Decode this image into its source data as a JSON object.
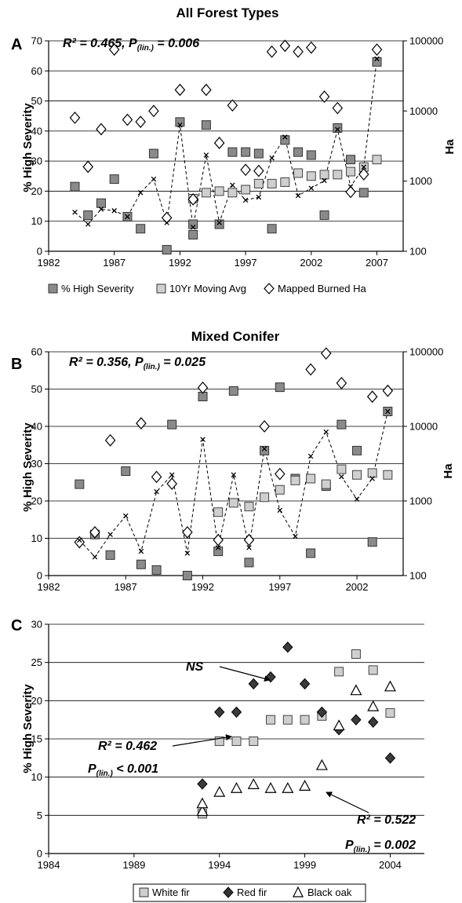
{
  "chart_data": [
    {
      "panel": "A",
      "title": "All Forest Types",
      "type": "scatter",
      "ylabel": "% High Severity",
      "y2label": "Ha",
      "xlim": [
        1982,
        2009
      ],
      "ylim": [
        0,
        70
      ],
      "y2lim": [
        100,
        100000
      ],
      "y2scale": "log",
      "xticks": [
        "1982",
        "1987",
        "1992",
        "1997",
        "2002",
        "2007"
      ],
      "yticks": [
        "0",
        "10",
        "20",
        "30",
        "40",
        "50",
        "60",
        "70"
      ],
      "y2ticks": [
        "100",
        "1000",
        "10000",
        "100000"
      ],
      "grid": "horizontal",
      "annotation": {
        "r2": "R² = 0.465, P",
        "sub": "(lin.)",
        "tail": " = 0.006"
      },
      "legend": [
        "% High Severity",
        "10Yr Moving Avg",
        "Mapped Burned Ha"
      ],
      "legend_position": "bottom",
      "series": [
        {
          "name": "% High Severity",
          "marker": "square-dark",
          "axis": "left",
          "x": [
            1984,
            1985,
            1986,
            1987,
            1988,
            1989,
            1990,
            1991,
            1992,
            1993,
            1993,
            1994,
            1995,
            1996,
            1997,
            1998,
            1999,
            2000,
            2001,
            2002,
            2003,
            2004,
            2005,
            2006,
            2007
          ],
          "y": [
            21.5,
            12,
            16,
            24,
            11.5,
            7.5,
            32.5,
            0.5,
            43,
            9,
            5.5,
            42,
            9,
            33,
            33,
            32.5,
            7.5,
            37,
            33,
            32,
            12,
            41,
            30.5,
            19.5,
            63
          ]
        },
        {
          "name": "10Yr Moving Avg",
          "marker": "square-light",
          "axis": "left",
          "x": [
            1993,
            1994,
            1995,
            1996,
            1997,
            1998,
            1999,
            2000,
            2001,
            2002,
            2003,
            2004,
            2005,
            2006,
            2007
          ],
          "y": [
            17.5,
            19.5,
            20,
            19.5,
            20.5,
            22.5,
            22.5,
            23,
            26,
            25,
            25.5,
            25.5,
            26.5,
            28,
            30.5
          ]
        },
        {
          "name": "Mapped Burned Ha",
          "marker": "diamond-open",
          "axis": "right",
          "x": [
            1984,
            1985,
            1986,
            1987,
            1988,
            1989,
            1990,
            1991,
            1992,
            1993,
            1994,
            1995,
            1996,
            1997,
            1998,
            1999,
            2000,
            2001,
            2002,
            2003,
            2004,
            2005,
            2006,
            2007
          ],
          "y": [
            8000,
            1600,
            5500,
            75000,
            7500,
            7000,
            10000,
            300,
            20000,
            550,
            20000,
            3500,
            12000,
            1450,
            1400,
            70000,
            85000,
            70000,
            80000,
            16000,
            11000,
            700,
            1250,
            75000
          ]
        },
        {
          "name": "",
          "marker": "x-dashed",
          "axis": "left",
          "x": [
            1984,
            1985,
            1986,
            1987,
            1988,
            1989,
            1990,
            1991,
            1992,
            1993,
            1994,
            1995,
            1996,
            1997,
            1998,
            1999,
            2000,
            2001,
            2002,
            2003,
            2004,
            2005,
            2006,
            2007
          ],
          "y": [
            13,
            9,
            14,
            13.5,
            11.5,
            19.5,
            24,
            9.5,
            42,
            8,
            32,
            9.5,
            22,
            17,
            18,
            31,
            38,
            18.5,
            21,
            23.5,
            40.5,
            21.5,
            28,
            64
          ]
        }
      ]
    },
    {
      "panel": "B",
      "title": "Mixed Conifer",
      "type": "scatter",
      "ylabel": "% High Severity",
      "y2label": "Ha",
      "xlim": [
        1982,
        2005
      ],
      "ylim": [
        0,
        60
      ],
      "y2lim": [
        100,
        100000
      ],
      "y2scale": "log",
      "xticks": [
        "1982",
        "1987",
        "1992",
        "1997",
        "2002"
      ],
      "yticks": [
        "0",
        "10",
        "20",
        "30",
        "40",
        "50",
        "60"
      ],
      "y2ticks": [
        "100",
        "1000",
        "10000",
        "100000"
      ],
      "grid": "horizontal",
      "annotation": {
        "r2": "R² = 0.356, P",
        "sub": "(lin.)",
        "tail": " = 0.025"
      },
      "series": [
        {
          "name": "% High Severity",
          "marker": "square-dark",
          "axis": "left",
          "x": [
            1984,
            1985,
            1986,
            1987,
            1988,
            1989,
            1990,
            1991,
            1992,
            1993,
            1994,
            1995,
            1996,
            1997,
            1998,
            1999,
            2000,
            2001,
            2002,
            2003,
            2004
          ],
          "y": [
            24.5,
            11,
            5.5,
            28,
            3,
            1.5,
            40.5,
            0,
            48,
            6.5,
            49.5,
            3.5,
            33.5,
            50.5,
            26,
            6,
            24,
            40.5,
            33.5,
            9,
            44
          ]
        },
        {
          "name": "10Yr Moving Avg",
          "marker": "square-light",
          "axis": "left",
          "x": [
            1993,
            1994,
            1995,
            1996,
            1997,
            1998,
            1999,
            2000,
            2001,
            2002,
            2003,
            2004
          ],
          "y": [
            17,
            19.5,
            18.5,
            21,
            23,
            25.5,
            26,
            24.5,
            28.5,
            27,
            27.5,
            27
          ]
        },
        {
          "name": "Mapped Burned Ha",
          "marker": "diamond-open",
          "axis": "right",
          "x": [
            1984,
            1985,
            1986,
            1988,
            1989,
            1990,
            1991,
            1992,
            1993,
            1995,
            1996,
            1997,
            1999,
            2000,
            2001,
            2003,
            2004
          ],
          "y": [
            280,
            380,
            6500,
            11000,
            2100,
            1700,
            380,
            33000,
            300,
            300,
            10000,
            2300,
            58000,
            95000,
            38000,
            25000,
            30000
          ]
        },
        {
          "name": "",
          "marker": "x-dashed",
          "axis": "left",
          "x": [
            1984,
            1985,
            1986,
            1987,
            1988,
            1989,
            1990,
            1991,
            1992,
            1993,
            1994,
            1995,
            1996,
            1997,
            1998,
            1999,
            2000,
            2001,
            2002,
            2003,
            2004
          ],
          "y": [
            9.5,
            5,
            11,
            16,
            6.5,
            22.5,
            27,
            6,
            36.5,
            7.5,
            27,
            7.5,
            34,
            17.5,
            10.5,
            32,
            38.5,
            26.5,
            20.5,
            26,
            44
          ]
        }
      ]
    },
    {
      "panel": "C",
      "title": "",
      "type": "scatter",
      "ylabel": "% High Severity",
      "xlim": [
        1984,
        2006
      ],
      "ylim": [
        0,
        30
      ],
      "xticks": [
        "1984",
        "1989",
        "1994",
        "1999",
        "2004"
      ],
      "yticks": [
        "0",
        "5",
        "10",
        "15",
        "20",
        "25",
        "30"
      ],
      "grid": "horizontal",
      "annotations": {
        "ns": "NS",
        "white_r2": "R² = 0.462",
        "white_p_label": "P",
        "white_p_sub": "(lin.)",
        "white_p_tail": " < 0.001",
        "oak_r2": "R² = 0.522",
        "oak_p_label": "P",
        "oak_p_sub": "(lin.)",
        "oak_p_tail": " = 0.002"
      },
      "legend": [
        "White fir",
        "Red fir",
        "Black oak"
      ],
      "legend_position": "bottom",
      "series": [
        {
          "name": "White fir",
          "marker": "square-light",
          "x": [
            1993,
            1994,
            1995,
            1996,
            1997,
            1998,
            1999,
            2000,
            2001,
            2002,
            2003,
            2004
          ],
          "y": [
            5.2,
            14.7,
            14.7,
            14.7,
            17.5,
            17.5,
            17.5,
            18,
            23.8,
            26.1,
            24,
            18.4
          ]
        },
        {
          "name": "Red fir",
          "marker": "diamond-dark",
          "x": [
            1993,
            1994,
            1995,
            1996,
            1997,
            1998,
            1999,
            2000,
            2001,
            2002,
            2003,
            2004
          ],
          "y": [
            9.1,
            18.5,
            18.5,
            22.2,
            23.1,
            27,
            22.2,
            18.5,
            16.2,
            17.5,
            17.2,
            12.5
          ]
        },
        {
          "name": "Black oak",
          "marker": "triangle-open",
          "x": [
            1993,
            1993,
            1994,
            1995,
            1996,
            1997,
            1998,
            1999,
            2000,
            2001,
            2002,
            2003,
            2004
          ],
          "y": [
            5.5,
            6.5,
            8,
            8.5,
            9,
            8.5,
            8.5,
            8.8,
            11.5,
            16.7,
            21.3,
            19.2,
            21.8
          ]
        }
      ]
    }
  ]
}
